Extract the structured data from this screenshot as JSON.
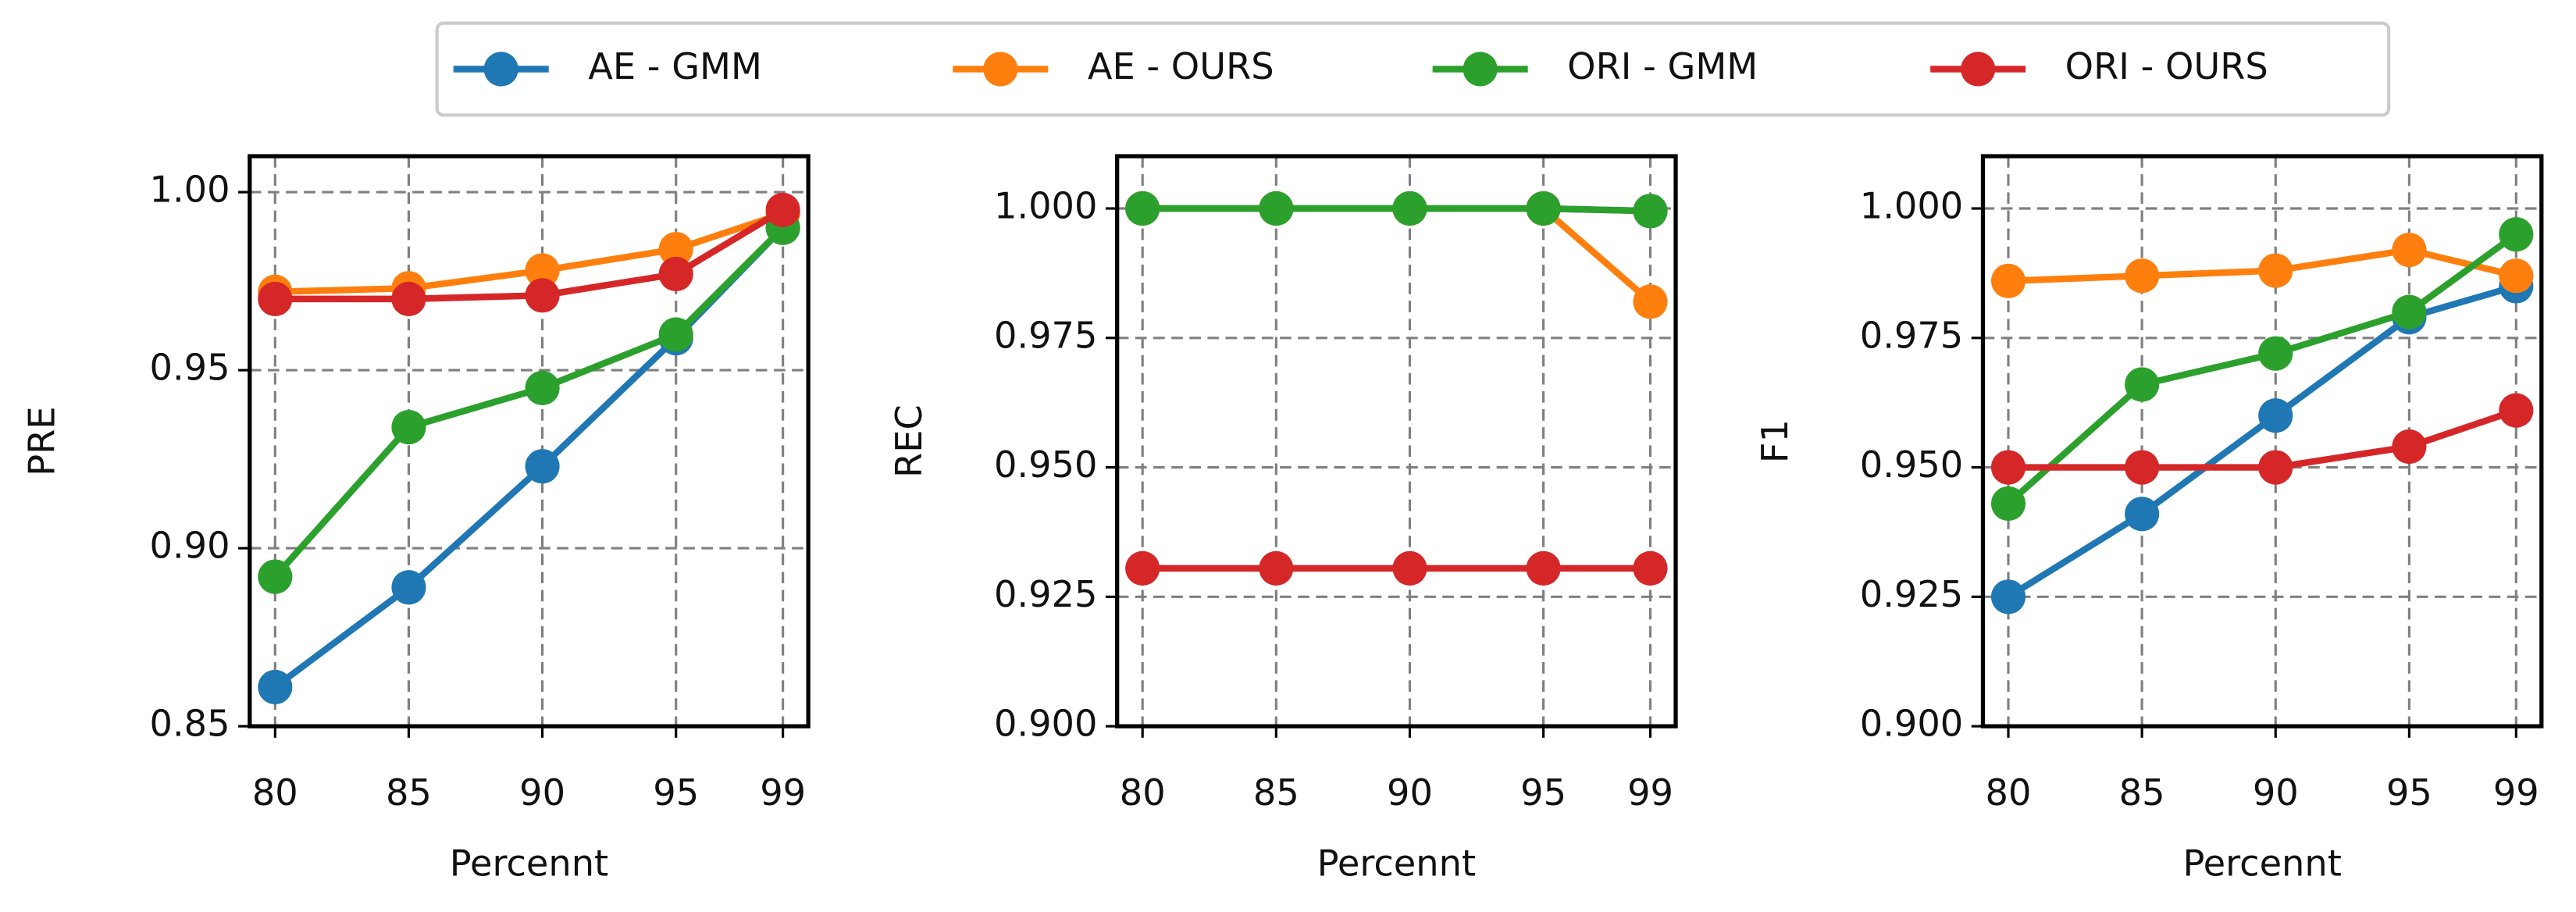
{
  "chart_data": [
    {
      "type": "line",
      "xlabel": "Percennt",
      "ylabel": "PRE",
      "x": [
        80,
        85,
        90,
        95,
        99
      ],
      "xlim": [
        79.05,
        99.95
      ],
      "xticks": [
        80,
        85,
        90,
        95,
        99
      ],
      "ylim": [
        0.85,
        1.0101
      ],
      "yticks": [
        0.85,
        {
          "value": 0.9,
          "label": "0.90"
        },
        0.95,
        {
          "value": 1.0,
          "label": "1.00"
        }
      ],
      "grid": true,
      "series": [
        {
          "name": "AE - GMM",
          "color": "#1f77b4",
          "values": [
            0.861,
            0.889,
            0.923,
            0.959,
            0.99
          ]
        },
        {
          "name": "AE - OURS",
          "color": "#ff7f0e",
          "values": [
            0.972,
            0.973,
            0.978,
            0.984,
            0.994
          ]
        },
        {
          "name": "ORI - GMM",
          "color": "#2ca02c",
          "values": [
            0.892,
            0.934,
            0.945,
            0.96,
            0.99
          ]
        },
        {
          "name": "ORI - OURS",
          "color": "#d62728",
          "values": [
            0.97,
            0.97,
            0.971,
            0.977,
            0.995
          ]
        }
      ]
    },
    {
      "type": "line",
      "xlabel": "Percennt",
      "ylabel": "REC",
      "x": [
        80,
        85,
        90,
        95,
        99
      ],
      "xlim": [
        79.05,
        99.95
      ],
      "xticks": [
        80,
        85,
        90,
        95,
        99
      ],
      "ylim": [
        0.9,
        1.0101
      ],
      "yticks": [
        {
          "value": 0.9,
          "label": "0.900"
        },
        0.925,
        {
          "value": 0.95,
          "label": "0.950"
        },
        0.975,
        {
          "value": 1.0,
          "label": "1.000"
        }
      ],
      "grid": true,
      "series": [
        {
          "name": "AE - GMM",
          "color": "#1f77b4",
          "values": [
            1.0,
            1.0,
            1.0,
            1.0,
            0.9995
          ]
        },
        {
          "name": "AE - OURS",
          "color": "#ff7f0e",
          "values": [
            1.0,
            1.0,
            1.0,
            1.0,
            0.982
          ]
        },
        {
          "name": "ORI - GMM",
          "color": "#2ca02c",
          "values": [
            1.0,
            1.0,
            1.0,
            1.0,
            0.9995
          ]
        },
        {
          "name": "ORI - OURS",
          "color": "#d62728",
          "values": [
            0.9305,
            0.9305,
            0.9305,
            0.9305,
            0.9305
          ]
        }
      ]
    },
    {
      "type": "line",
      "xlabel": "Percennt",
      "ylabel": "F1",
      "x": [
        80,
        85,
        90,
        95,
        99
      ],
      "xlim": [
        79.05,
        99.95
      ],
      "xticks": [
        80,
        85,
        90,
        95,
        99
      ],
      "ylim": [
        0.9,
        1.0101
      ],
      "yticks": [
        {
          "value": 0.9,
          "label": "0.900"
        },
        0.925,
        {
          "value": 0.95,
          "label": "0.950"
        },
        0.975,
        {
          "value": 1.0,
          "label": "1.000"
        }
      ],
      "grid": true,
      "series": [
        {
          "name": "AE - GMM",
          "color": "#1f77b4",
          "values": [
            0.925,
            0.941,
            0.96,
            0.979,
            0.985
          ]
        },
        {
          "name": "AE - OURS",
          "color": "#ff7f0e",
          "values": [
            0.986,
            0.987,
            0.988,
            0.992,
            0.987
          ]
        },
        {
          "name": "ORI - GMM",
          "color": "#2ca02c",
          "values": [
            0.943,
            0.966,
            0.972,
            0.98,
            0.995
          ]
        },
        {
          "name": "ORI - OURS",
          "color": "#d62728",
          "values": [
            0.95,
            0.95,
            0.95,
            0.954,
            0.961
          ]
        }
      ]
    }
  ]
}
